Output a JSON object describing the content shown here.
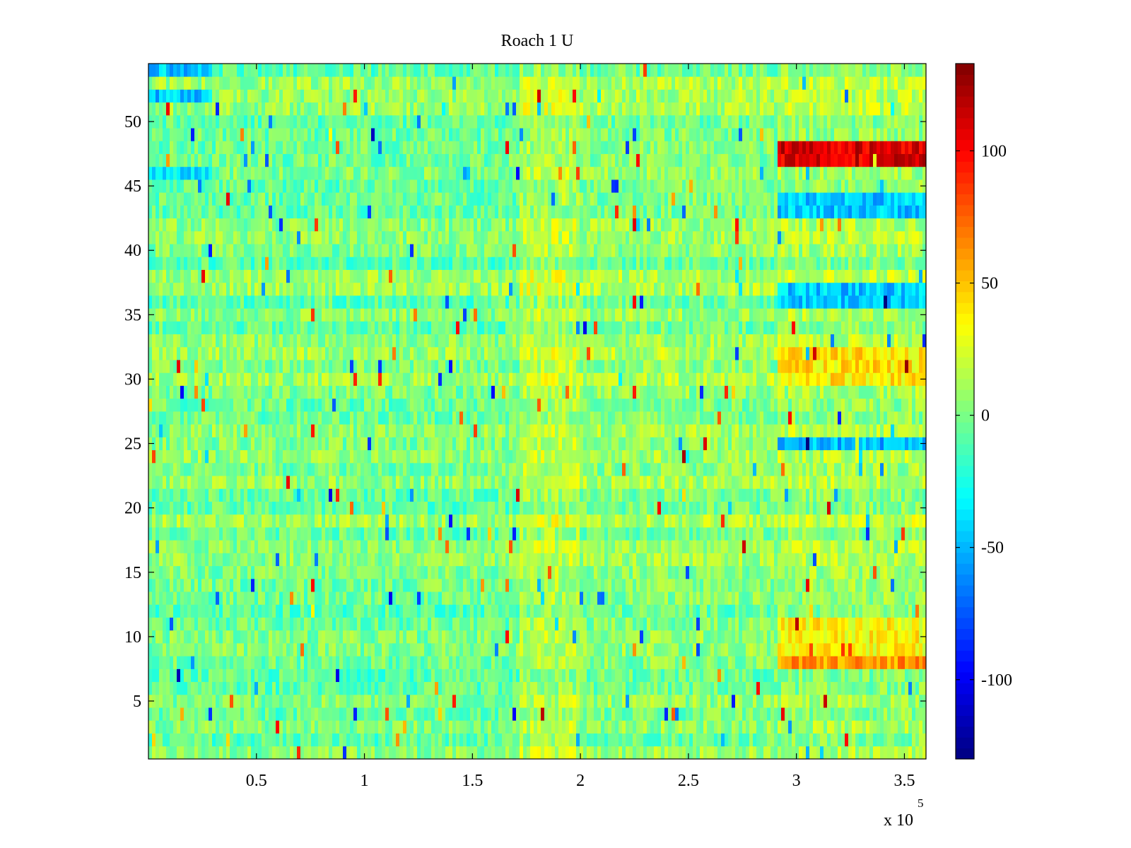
{
  "chart_data": {
    "type": "heatmap",
    "title": "Roach 1 U",
    "xlabel": "",
    "ylabel": "",
    "x_multiplier_label": {
      "base": "x 10",
      "exponent": "5"
    },
    "xlim": [
      0,
      3.6
    ],
    "x_scale_factor": 100000,
    "ylim": [
      0.5,
      54.5
    ],
    "n_rows": 54,
    "x_ticks": [
      0.5,
      1,
      1.5,
      2,
      2.5,
      3,
      3.5
    ],
    "x_tick_labels": [
      "0.5",
      "1",
      "1.5",
      "2",
      "2.5",
      "3",
      "3.5"
    ],
    "y_ticks": [
      5,
      10,
      15,
      20,
      25,
      30,
      35,
      40,
      45,
      50
    ],
    "y_tick_labels": [
      "5",
      "10",
      "15",
      "20",
      "25",
      "30",
      "35",
      "40",
      "45",
      "50"
    ],
    "colorbar": {
      "colormap": "jet",
      "clim": [
        -130,
        133
      ],
      "ticks": [
        -100,
        -50,
        0,
        50,
        100
      ],
      "tick_labels": [
        "-100",
        "-50",
        "0",
        "50",
        "100"
      ]
    },
    "segments": [
      {
        "x_range": [
          0,
          0.5
        ],
        "base_value": 0,
        "description": "green-cyan noise"
      },
      {
        "x_range": [
          0.5,
          1.72
        ],
        "base_value": 0
      },
      {
        "x_range": [
          1.72,
          2.0
        ],
        "base_value": 15
      },
      {
        "x_range": [
          2.0,
          2.91
        ],
        "base_value": 5
      },
      {
        "x_range": [
          2.91,
          3.6
        ],
        "base_value": 10
      }
    ],
    "notable_row_values": [
      {
        "rows": [
          47,
          48
        ],
        "x_range": [
          2.92,
          3.6
        ],
        "value": 110
      },
      {
        "rows": [
          43,
          44
        ],
        "x_range": [
          2.92,
          3.6
        ],
        "value": -45
      },
      {
        "rows": [
          36,
          37
        ],
        "x_range": [
          2.92,
          3.6
        ],
        "value": -45
      },
      {
        "rows": [
          25
        ],
        "x_range": [
          2.92,
          3.6
        ],
        "value": -50
      },
      {
        "rows": [
          8
        ],
        "x_range": [
          2.92,
          3.6
        ],
        "value": 60
      },
      {
        "rows": [
          9,
          10,
          11
        ],
        "x_range": [
          2.92,
          3.6
        ],
        "value": 35
      },
      {
        "rows": [
          30,
          31,
          32
        ],
        "x_range": [
          2.92,
          3.6
        ],
        "value": 40
      },
      {
        "rows": [
          46
        ],
        "x_range": [
          0,
          0.3
        ],
        "value": -40
      },
      {
        "rows": [
          52,
          54
        ],
        "x_range": [
          0,
          0.3
        ],
        "value": -45
      }
    ],
    "grid": false,
    "legend": "none"
  }
}
